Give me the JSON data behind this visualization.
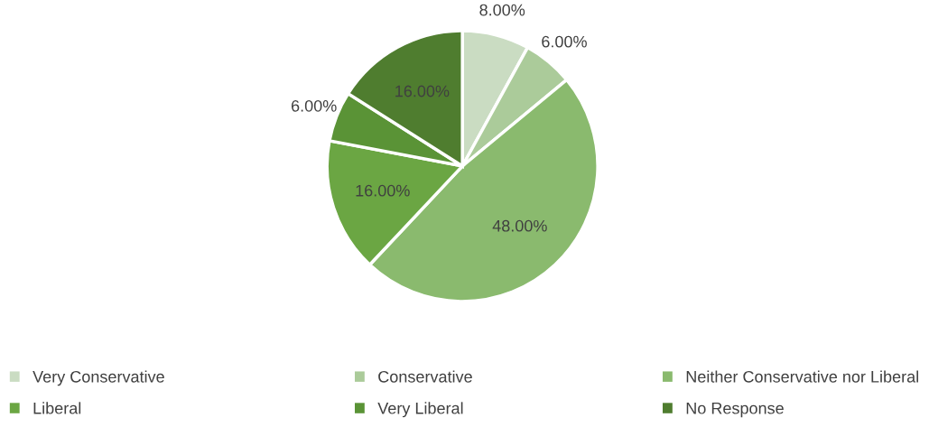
{
  "chart_data": {
    "type": "pie",
    "categories": [
      "Very Conservative",
      "Conservative",
      "Neither Conservative nor Liberal",
      "Liberal",
      "Very Liberal",
      "No Response"
    ],
    "values": [
      8,
      6,
      48,
      16,
      6,
      16
    ],
    "value_labels": [
      "8.00%",
      "6.00%",
      "48.00%",
      "16.00%",
      "6.00%",
      "16.00%"
    ],
    "colors": [
      "#cadcc2",
      "#abcb9a",
      "#8aba6e",
      "#6ba643",
      "#5a9336",
      "#4f7d2f"
    ],
    "legend": "bottom"
  }
}
